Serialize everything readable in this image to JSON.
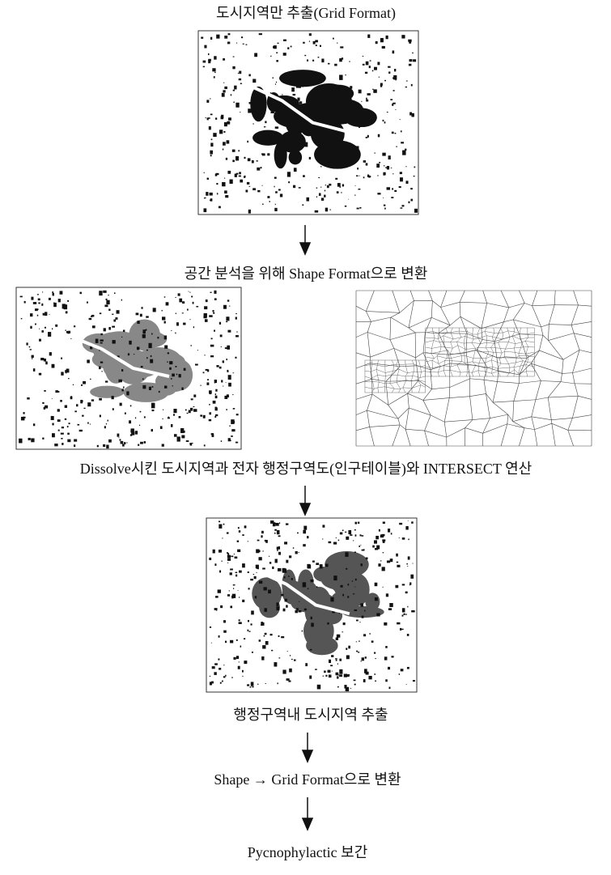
{
  "steps": [
    "도시지역만 추출(Grid Format)",
    "공간 분석을 위해 Shape Format으로 변환",
    "Dissolve시킨 도시지역과 전자 행정구역도(인구테이블)와 INTERSECT 연산",
    "행정구역내 도시지역 추출",
    "Shape → Grid Format으로 변환",
    "Pycnophylactic 보간"
  ]
}
